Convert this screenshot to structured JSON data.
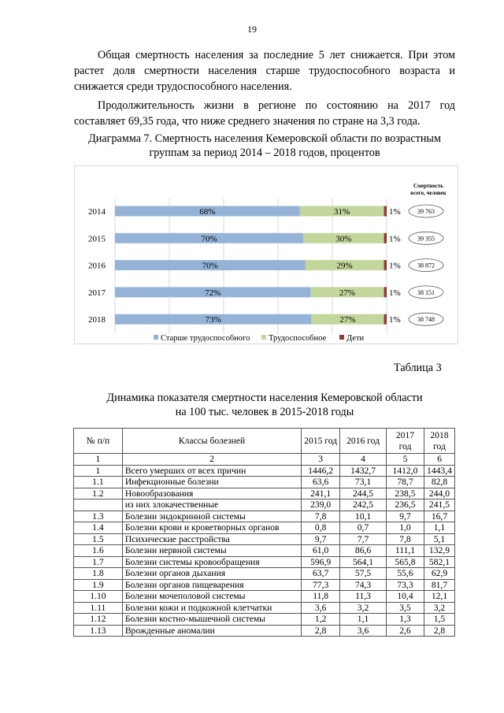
{
  "page_number": "19",
  "paragraphs": [
    "Общая смертность населения за последние 5 лет снижается. При этом растет доля смертности населения старше трудоспособного возраста и снижается среди трудоспособного населения.",
    "Продолжительность жизни в регионе по состоянию на 2017 год составляет 69,35 года, что ниже среднего значения по стране на 3,3 года."
  ],
  "chart_caption": "Диаграмма 7. Смертность населения Кемеровской области по возрастным группам за период 2014 – 2018 годов, процентов",
  "chart_data": {
    "type": "bar",
    "orientation": "horizontal",
    "stacked": "100%",
    "categories": [
      "2014",
      "2015",
      "2016",
      "2017",
      "2018"
    ],
    "series": [
      {
        "name": "Старше трудоспособного",
        "values": [
          68,
          70,
          70,
          72,
          73
        ],
        "labels": [
          "68%",
          "70%",
          "70%",
          "72%",
          "73%"
        ],
        "color": "#95b3d7"
      },
      {
        "name": "Трудоспособное",
        "values": [
          31,
          30,
          29,
          27,
          27
        ],
        "labels": [
          "31%",
          "30%",
          "29%",
          "27%",
          "27%"
        ],
        "color": "#c3d69b"
      },
      {
        "name": "Дети",
        "values": [
          1,
          1,
          1,
          1,
          1
        ],
        "labels": [
          "1%",
          "1%",
          "1%",
          "1%",
          "1%"
        ],
        "color": "#953735"
      }
    ],
    "totals_header": "Смертность всего, человек",
    "totals": [
      "39 763",
      "39 355",
      "38 872",
      "38 151",
      "38 748"
    ],
    "xlim": [
      0,
      100
    ],
    "grid": true,
    "legend": "bottom"
  },
  "table_label": "Таблица 3",
  "table_title": [
    "Динамика показателя смертности населения Кемеровской области",
    "на 100 тыс. человек в 2015-2018 годы"
  ],
  "table": {
    "headers": [
      "№ п/п",
      "Классы болезней",
      "2015 год",
      "2016 год",
      "2017 год",
      "2018 год"
    ],
    "col_numbers": [
      "1",
      "2",
      "3",
      "4",
      "5",
      "6"
    ],
    "rows": [
      [
        "1",
        "Всего умерших от всех причин",
        "1446,2",
        "1432,7",
        "1412,0",
        "1443,4"
      ],
      [
        "1.1",
        "Инфекционные болезни",
        "63,6",
        "73,1",
        "78,7",
        "82,8"
      ],
      [
        "1.2",
        "Новообразования",
        "241,1",
        "244,5",
        "238,5",
        "244,0"
      ],
      [
        "",
        "из них злокачественные",
        "239,0",
        "242,5",
        "236,5",
        "241,5"
      ],
      [
        "1.3",
        "Болезни эндокринной системы",
        "7,8",
        "10,1",
        "9,7",
        "16,7"
      ],
      [
        "1.4",
        "Болезни крови и кроветворных органов",
        "0,8",
        "0,7",
        "1,0",
        "1,1"
      ],
      [
        "1.5",
        "Психические расстройства",
        "9,7",
        "7,7",
        "7,8",
        "5,1"
      ],
      [
        "1.6",
        "Болезни нервной системы",
        "61,0",
        "86,6",
        "111,1",
        "132,9"
      ],
      [
        "1.7",
        "Болезни системы кровообращения",
        "596,9",
        "564,1",
        "565,8",
        "582,1"
      ],
      [
        "1.8",
        "Болезни органов дыхания",
        "63,7",
        "57,5",
        "55,6",
        "62,9"
      ],
      [
        "1.9",
        "Болезни органов пищеварения",
        "77,3",
        "74,3",
        "73,3",
        "81,7"
      ],
      [
        "1.10",
        "Болезни мочеполовой системы",
        "11,8",
        "11,3",
        "10,4",
        "12,1"
      ],
      [
        "1.11",
        "Болезни кожи и подкожной клетчатки",
        "3,6",
        "3,2",
        "3,5",
        "3,2"
      ],
      [
        "1.12",
        "Болезни костно-мышечной системы",
        "1,2",
        "1,1",
        "1,3",
        "1,5"
      ],
      [
        "1.13",
        "Врожденные аномалии",
        "2,8",
        "3,6",
        "2,6",
        "2,8"
      ]
    ]
  }
}
